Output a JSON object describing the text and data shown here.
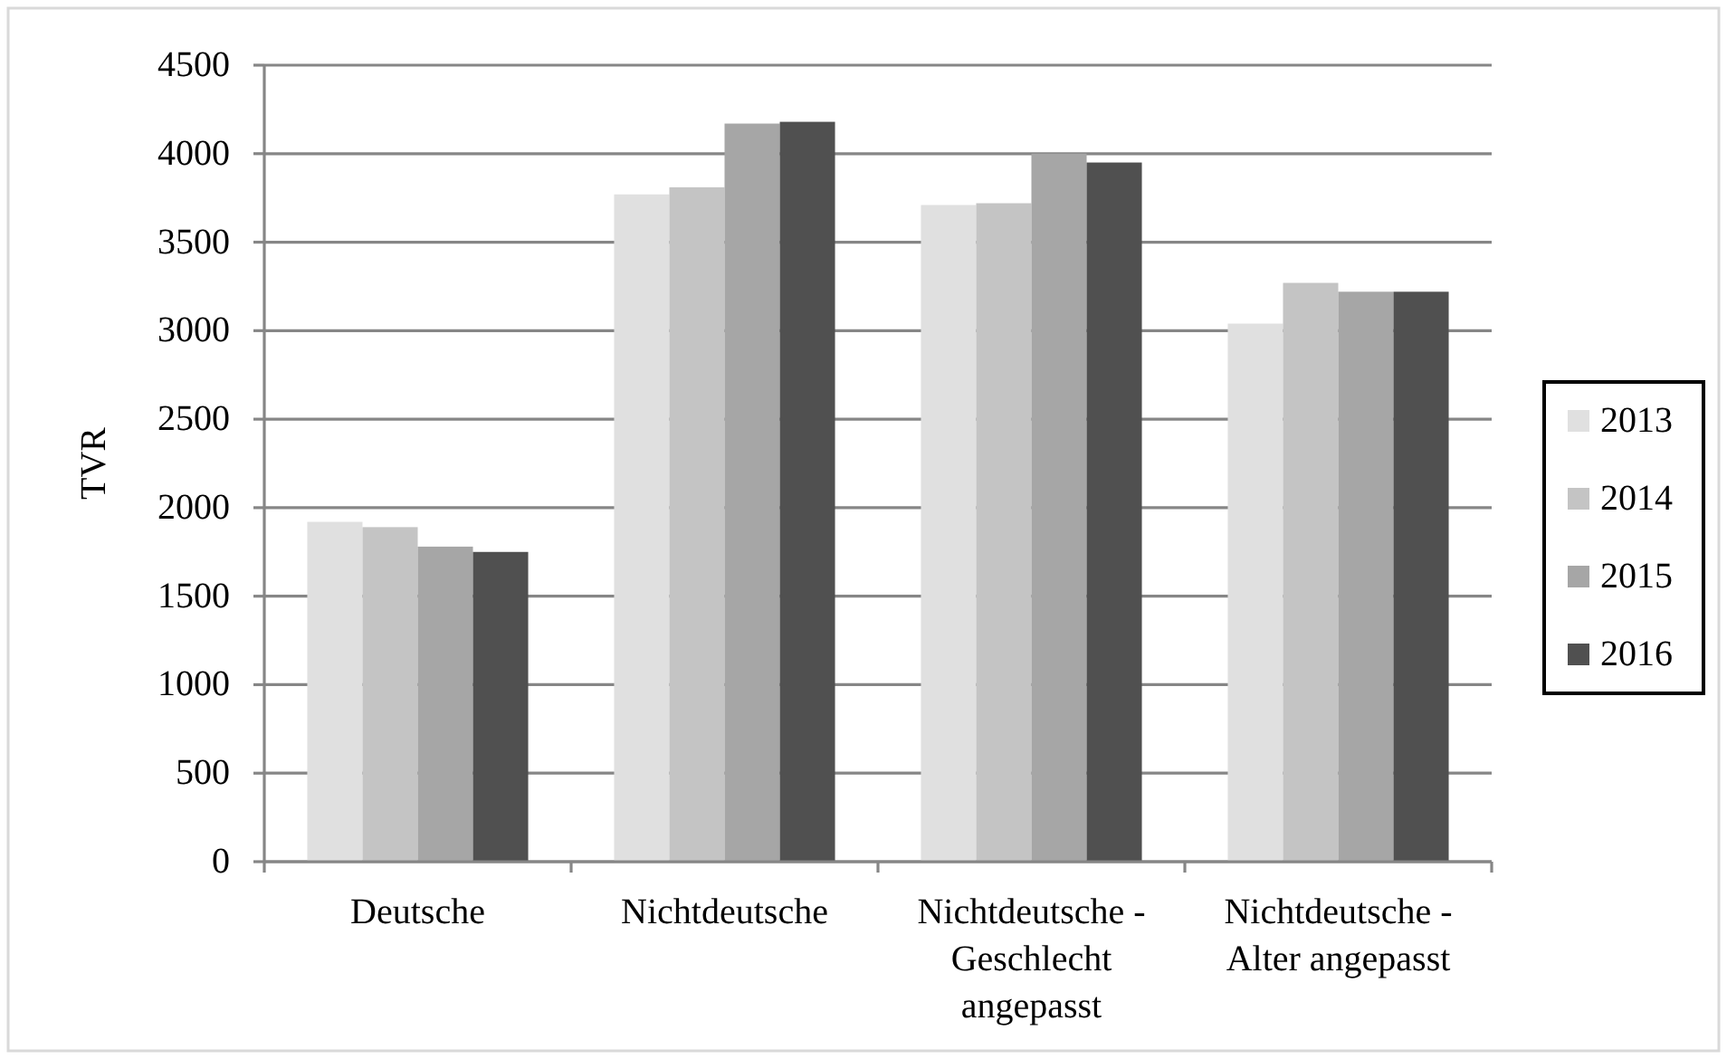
{
  "chart_data": {
    "type": "bar",
    "ylabel": "TVR",
    "categories": [
      "Deutsche",
      "Nichtdeutsche",
      "Nichtdeutsche - Geschlecht angepasst",
      "Nichtdeutsche - Alter angepasst"
    ],
    "series": [
      {
        "name": "2013",
        "color": "#e0e0e0",
        "values": [
          1920,
          3770,
          3710,
          3040
        ]
      },
      {
        "name": "2014",
        "color": "#c4c4c4",
        "values": [
          1890,
          3810,
          3720,
          3270
        ]
      },
      {
        "name": "2015",
        "color": "#a6a6a6",
        "values": [
          1780,
          4170,
          4000,
          3220
        ]
      },
      {
        "name": "2016",
        "color": "#505050",
        "values": [
          1750,
          4180,
          3950,
          3220
        ]
      }
    ],
    "ylim": [
      0,
      4500
    ],
    "yticks": [
      0,
      500,
      1000,
      1500,
      2000,
      2500,
      3000,
      3500,
      4000,
      4500
    ],
    "grid": "y",
    "legend": "right"
  }
}
